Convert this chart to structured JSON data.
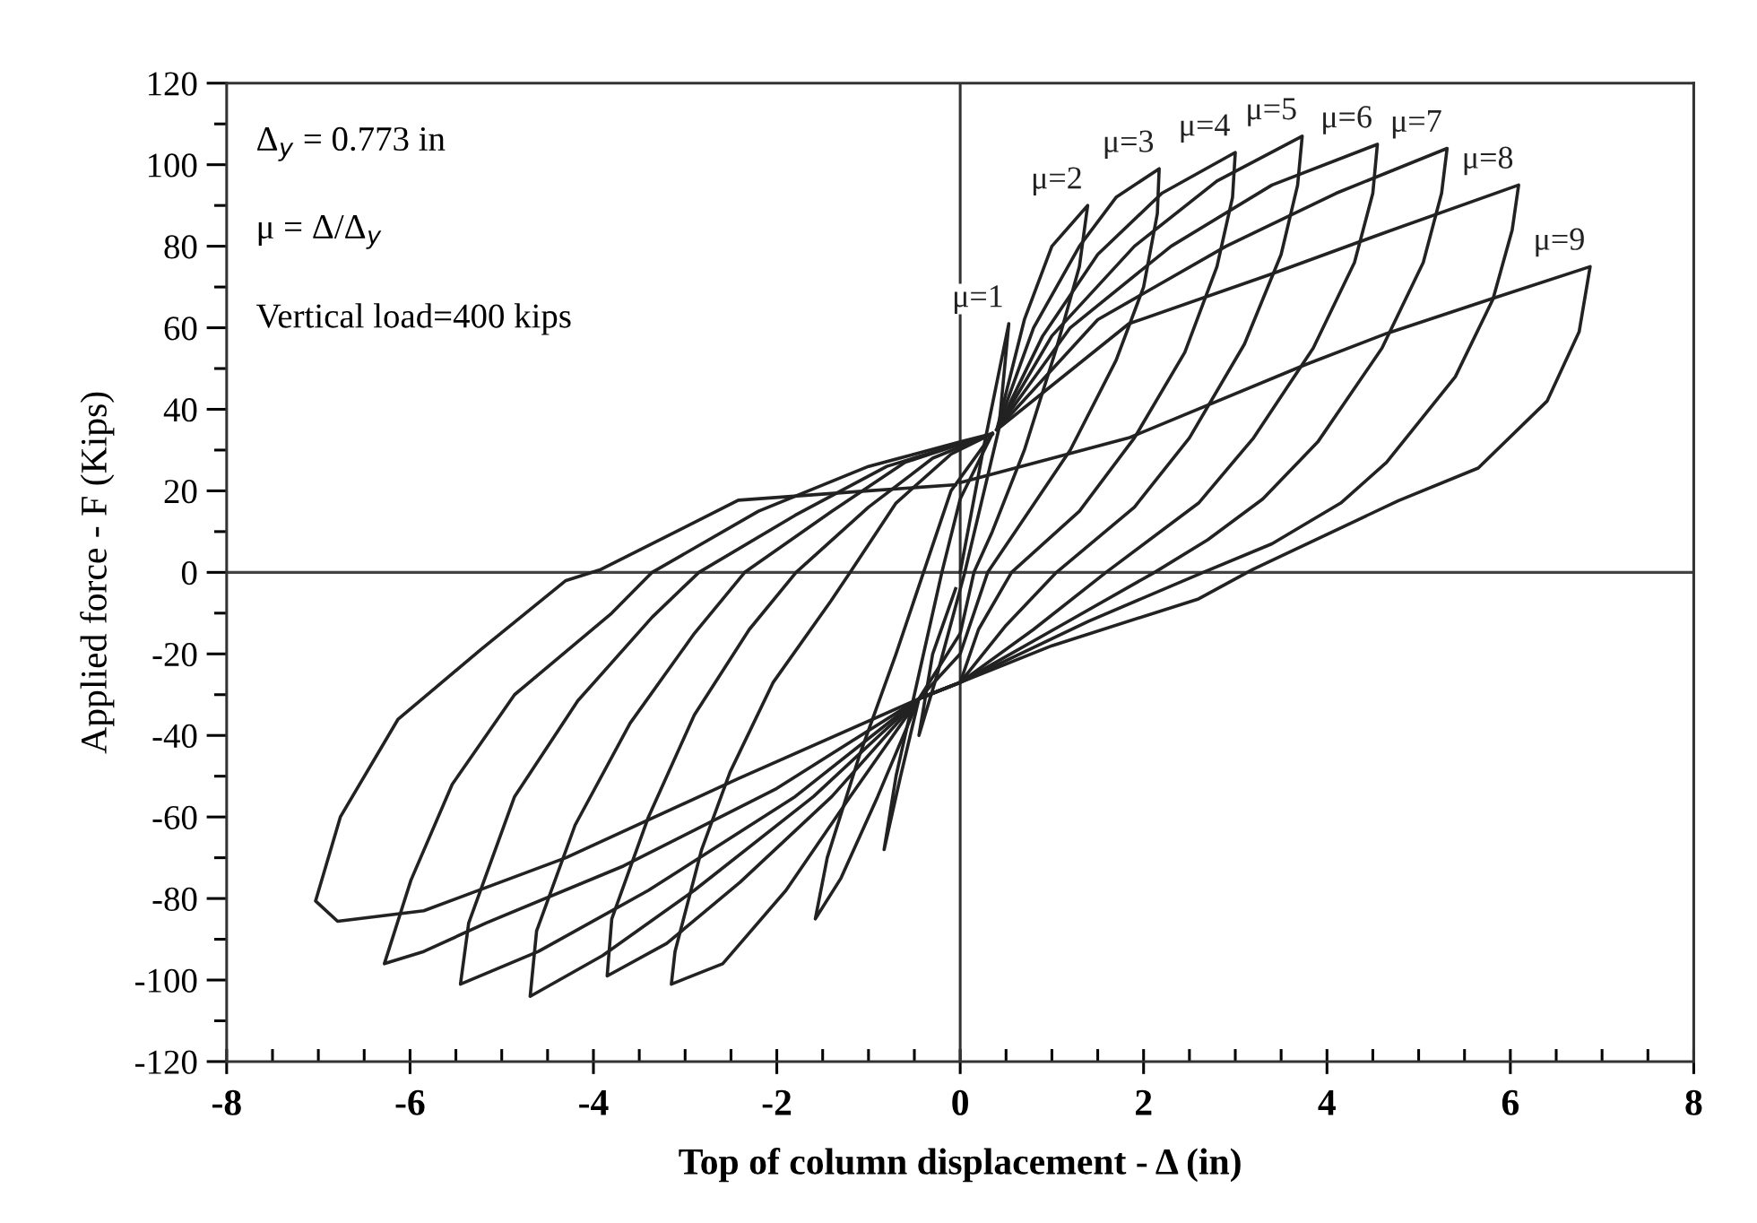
{
  "chart_data": {
    "type": "line",
    "xlabel": "Top of column displacement - Δ (in)",
    "ylabel": "Applied force - F (Kips)",
    "annotations": [
      "Δ$_{y}$ = 0.773 in",
      "μ = Δ/Δ$_{y}$",
      "Vertical load=400 kips"
    ],
    "xlim": [
      -8,
      8
    ],
    "ylim": [
      -120,
      120
    ],
    "xticks": [
      -8,
      {
        "value": -7.5,
        "label": null
      },
      {
        "value": -7,
        "label": null
      },
      {
        "value": -6.5,
        "label": null
      },
      -6,
      {
        "value": -5.5,
        "label": null
      },
      {
        "value": -5,
        "label": null
      },
      {
        "value": -4.5,
        "label": null
      },
      -4,
      {
        "value": -3.5,
        "label": null
      },
      {
        "value": -3,
        "label": null
      },
      {
        "value": -2.5,
        "label": null
      },
      -2,
      {
        "value": -1.5,
        "label": null
      },
      {
        "value": -1,
        "label": null
      },
      {
        "value": -0.5,
        "label": null
      },
      0,
      {
        "value": 0.5,
        "label": null
      },
      {
        "value": 1,
        "label": null
      },
      {
        "value": 1.5,
        "label": null
      },
      2,
      {
        "value": 2.5,
        "label": null
      },
      {
        "value": 3,
        "label": null
      },
      {
        "value": 3.5,
        "label": null
      },
      4,
      {
        "value": 4.5,
        "label": null
      },
      {
        "value": 5,
        "label": null
      },
      {
        "value": 5.5,
        "label": null
      },
      6,
      {
        "value": 6.5,
        "label": null
      },
      {
        "value": 7,
        "label": null
      },
      {
        "value": 7.5,
        "label": null
      },
      8
    ],
    "yticks": [
      -120,
      {
        "value": -110,
        "label": null
      },
      -100,
      {
        "value": -90,
        "label": null
      },
      -80,
      {
        "value": -70,
        "label": null
      },
      -60,
      {
        "value": -50,
        "label": null
      },
      -40,
      {
        "value": -30,
        "label": null
      },
      -20,
      {
        "value": -10,
        "label": null
      },
      0,
      {
        "value": 10,
        "label": null
      },
      20,
      {
        "value": 30,
        "label": null
      },
      40,
      {
        "value": 50,
        "label": null
      },
      60,
      {
        "value": 70,
        "label": null
      },
      80,
      {
        "value": 90,
        "label": null
      },
      100,
      {
        "value": 110,
        "label": null
      },
      120
    ],
    "grid": false,
    "legend": false,
    "marker": "none",
    "line_style": "solid",
    "ref_lines": [
      {
        "axis": "x",
        "value": 0,
        "color": "#333333"
      },
      {
        "axis": "y",
        "value": 0,
        "color": "#444444"
      }
    ],
    "series": [
      {
        "name": "μ=1",
        "color": "#222222",
        "x": [
          0,
          0.25,
          0.53,
          0.42,
          0.05,
          -0.25,
          -0.45,
          -0.3,
          -0.05
        ],
        "values": [
          0,
          30,
          61,
          35,
          0,
          -25,
          -40,
          -20,
          -4
        ]
      },
      {
        "name": "μ=2",
        "color": "#222222",
        "x": [
          0.4,
          0.7,
          1.0,
          1.39,
          1.3,
          1.05,
          0.7,
          0.35,
          0.15,
          0,
          -0.45,
          -0.65,
          -0.83,
          -0.7,
          -0.45,
          -0.2,
          0,
          0.35
        ],
        "values": [
          35,
          62,
          80,
          90,
          75,
          55,
          30,
          10,
          0,
          -15,
          -31,
          -50,
          -68,
          -50,
          -25,
          0,
          18,
          34
        ]
      },
      {
        "name": "μ=3",
        "color": "#222222",
        "x": [
          0.4,
          0.8,
          1.3,
          1.7,
          2.17,
          2.15,
          2.0,
          1.7,
          1.2,
          0.6,
          0.3,
          0,
          -0.45,
          -0.9,
          -1.3,
          -1.58,
          -1.45,
          -1.1,
          -0.7,
          -0.4,
          -0.1,
          0.35
        ],
        "values": [
          35,
          60,
          80,
          92,
          99,
          88,
          70,
          52,
          30,
          10,
          0,
          -20,
          -31,
          -55,
          -75,
          -85,
          -70,
          -45,
          -20,
          0,
          20,
          34
        ]
      },
      {
        "name": "μ=4",
        "color": "#222222",
        "x": [
          0.4,
          0.9,
          1.5,
          2.2,
          3.0,
          2.97,
          2.8,
          2.45,
          1.9,
          1.3,
          0.56,
          0.2,
          0,
          -0.45,
          -1.2,
          -1.9,
          -2.59,
          -3.15,
          -3.11,
          -2.82,
          -2.51,
          -2.04,
          -1.41,
          -1.2,
          -0.7,
          -0.1,
          0.35
        ],
        "values": [
          35,
          58,
          78,
          93,
          103,
          92,
          75,
          54,
          33,
          15,
          0,
          -14,
          -27,
          -31,
          -55,
          -78,
          -96,
          -101,
          -93,
          -68,
          -49,
          -27,
          -7,
          0,
          17,
          29,
          34
        ]
      },
      {
        "name": "μ=5",
        "color": "#222222",
        "x": [
          0.4,
          1.0,
          1.9,
          2.8,
          3.73,
          3.68,
          3.5,
          3.1,
          2.5,
          1.9,
          1.05,
          0.5,
          0,
          -0.45,
          -1.4,
          -2.4,
          -3.2,
          -3.85,
          -3.8,
          -3.4,
          -2.9,
          -2.3,
          -1.79,
          -1.0,
          -0.3,
          0.35
        ],
        "values": [
          35,
          58,
          80,
          96,
          107,
          95,
          78,
          56,
          33,
          16,
          0,
          -13,
          -27,
          -31,
          -55,
          -76,
          -91,
          -99,
          -85,
          -60,
          -35,
          -14,
          0,
          16,
          28,
          34
        ]
      },
      {
        "name": "μ=6",
        "color": "#222222",
        "x": [
          0.4,
          1.2,
          2.3,
          3.4,
          4.55,
          4.5,
          4.3,
          3.85,
          3.2,
          2.6,
          1.59,
          0.8,
          0,
          -0.45,
          -1.6,
          -2.9,
          -3.9,
          -4.69,
          -4.62,
          -4.2,
          -3.6,
          -2.9,
          -2.35,
          -1.4,
          -0.6,
          0.35
        ],
        "values": [
          35,
          60,
          80,
          95,
          105,
          93,
          76,
          55,
          33,
          17,
          0,
          -14,
          -27,
          -31,
          -55,
          -78,
          -94,
          -104,
          -88,
          -62,
          -37,
          -15,
          0,
          15,
          27,
          34
        ]
      },
      {
        "name": "μ=7",
        "color": "#222222",
        "x": [
          0.4,
          1.5,
          2.9,
          4.1,
          5.31,
          5.25,
          5.05,
          4.6,
          3.9,
          3.3,
          2.7,
          2.12,
          1.1,
          0,
          -0.45,
          -1.8,
          -3.4,
          -4.6,
          -5.45,
          -5.36,
          -4.86,
          -4.17,
          -3.36,
          -2.85,
          -1.8,
          -0.8,
          0.35
        ],
        "values": [
          35,
          62,
          80,
          93,
          104,
          93,
          76,
          55,
          32,
          18,
          8,
          0,
          -13,
          -27,
          -31,
          -55,
          -78,
          -93,
          -101,
          -86,
          -55,
          -31.5,
          -11,
          0,
          14,
          26,
          34
        ]
      },
      {
        "name": "μ=8",
        "color": "#222222",
        "x": [
          0.4,
          1.84,
          3.37,
          4.65,
          6.09,
          6.02,
          5.81,
          5.4,
          4.65,
          4.15,
          3.4,
          2.65,
          1.4,
          0,
          -0.45,
          -2.0,
          -3.67,
          -5.17,
          -5.85,
          -6.28,
          -5.99,
          -5.54,
          -4.86,
          -3.8,
          -3.36,
          -2.2,
          -1.0,
          0,
          0.35
        ],
        "values": [
          35,
          61,
          73,
          83.5,
          95,
          84,
          67,
          48,
          27,
          17,
          7,
          0,
          -12,
          -27,
          -31,
          -53,
          -72,
          -86,
          -93,
          -96,
          -75.5,
          -52,
          -30,
          -10,
          0,
          15,
          26,
          32,
          34
        ]
      },
      {
        "name": "μ=9",
        "color": "#222222",
        "x": [
          0,
          1.84,
          3.77,
          4.65,
          5.78,
          6.87,
          6.75,
          6.4,
          5.65,
          4.78,
          3.19,
          2.6,
          1.0,
          0,
          -0.45,
          -2.42,
          -4.3,
          -5.85,
          -6.79,
          -7.03,
          -6.76,
          -6.13,
          -5.23,
          -4.3,
          -3.92,
          -2.42,
          -1.0,
          -0.05
        ],
        "values": [
          22,
          33,
          51,
          58.6,
          67,
          75,
          59,
          42,
          25.6,
          17.6,
          0.7,
          -6.5,
          -18,
          -27,
          -31,
          -50.6,
          -70,
          -83,
          -85.6,
          -80.6,
          -60,
          -36,
          -19,
          -2,
          0.7,
          17.7,
          20,
          21.5
        ]
      }
    ]
  }
}
